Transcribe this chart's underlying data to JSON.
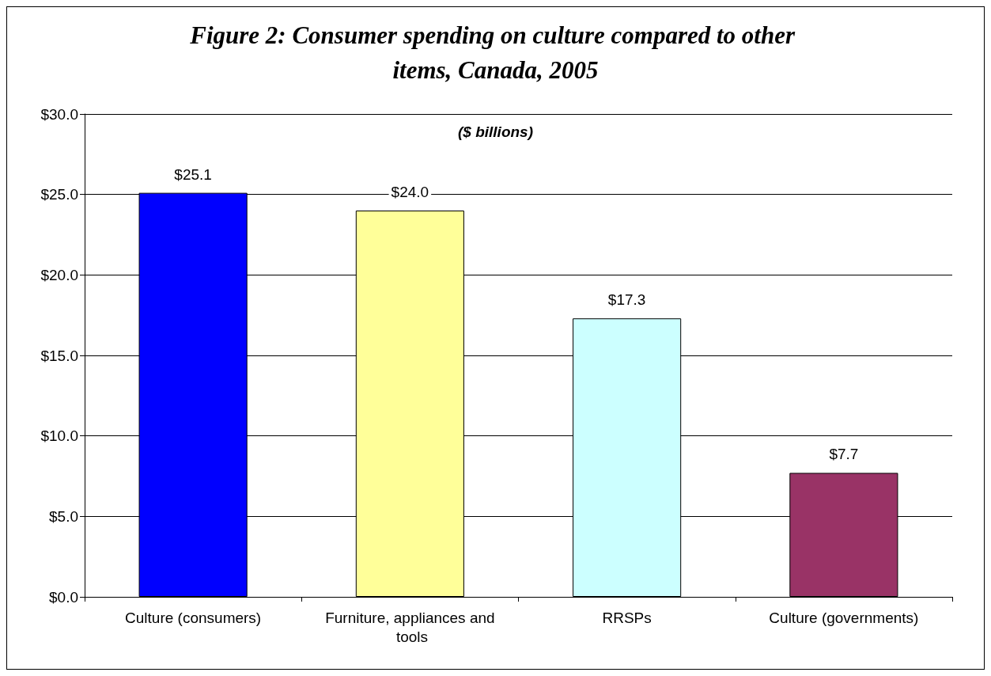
{
  "chart_data": {
    "type": "bar",
    "title": "Figure 2: Consumer spending on culture compared to other items, Canada, 2005",
    "annotations": [
      "($ billions)"
    ],
    "categories": [
      "Culture (consumers)",
      "Furniture, appliances and tools",
      "RRSPs",
      "Culture (governments)"
    ],
    "values": [
      25.1,
      24.0,
      17.3,
      7.7
    ],
    "value_labels": [
      "$25.1",
      "$24.0",
      "$17.3",
      "$7.7"
    ],
    "colors": [
      "#0000ff",
      "#ffff99",
      "#ccffff",
      "#993366"
    ],
    "ylim": [
      0,
      30
    ],
    "yticks": [
      {
        "value": 0,
        "label": "$0.0"
      },
      {
        "value": 5,
        "label": "$5.0"
      },
      {
        "value": 10,
        "label": "$10.0"
      },
      {
        "value": 15,
        "label": "$15.0"
      },
      {
        "value": 20,
        "label": "$20.0"
      },
      {
        "value": 25,
        "label": "$25.0"
      },
      {
        "value": 30,
        "label": "$30.0"
      }
    ],
    "grid": "y"
  }
}
